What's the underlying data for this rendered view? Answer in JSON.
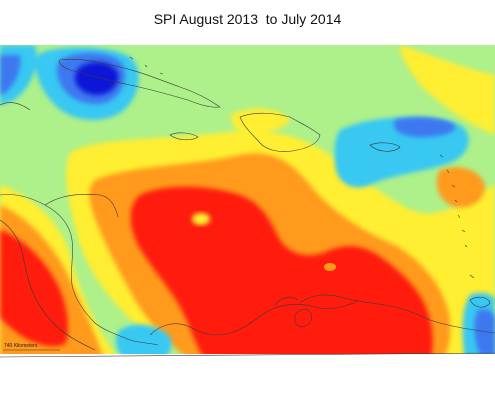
{
  "title": "SPI August 2013  to July 2014",
  "scale_bar": {
    "label": "740 Kilometers"
  },
  "colors": {
    "extreme_wet": "#0a12d6",
    "very_wet": "#3c78f0",
    "wet": "#39c8f2",
    "near_normal": "#aef08a",
    "moderately_dry": "#ffee33",
    "very_dry": "#ff9a1f",
    "extreme_dry": "#ff1a0f",
    "coastline": "#3a3a3a",
    "background": "#ffffff"
  }
}
